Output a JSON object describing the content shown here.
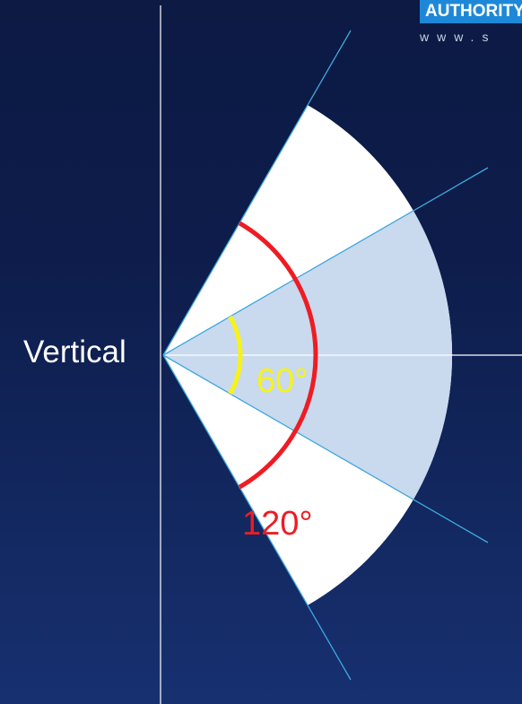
{
  "brand": {
    "badge_text": "AUTHORITY",
    "url_text": "www.s"
  },
  "labels": {
    "vertical": "Vertical",
    "inner_angle": "60°",
    "outer_angle": "120°"
  },
  "angles": {
    "inner_degrees": 60,
    "outer_degrees": 120
  },
  "colors": {
    "background": "#0d1c4a",
    "sector_fill": "#ffffff",
    "inner_sector_fill": "#c9d9ee",
    "ray_line": "#3fa8e0",
    "axis_line": "#ffffff",
    "inner_arc": "#f7f21a",
    "outer_arc": "#ee1c23"
  }
}
